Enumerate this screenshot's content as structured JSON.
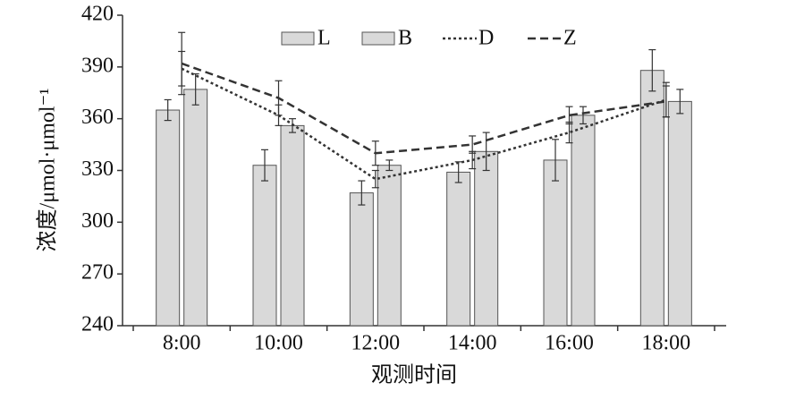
{
  "chart_data": {
    "type": "bar",
    "x_label": "观测时间",
    "y_label": "浓度/μmol·μmol⁻¹",
    "categories": [
      "8:00",
      "10:00",
      "12:00",
      "14:00",
      "16:00",
      "18:00"
    ],
    "series": [
      {
        "name": "L",
        "type": "bar",
        "color": "#d9d9d9",
        "values": [
          365,
          333,
          317,
          329,
          336,
          388
        ],
        "errors": [
          6,
          9,
          7,
          6,
          12,
          12
        ]
      },
      {
        "name": "B",
        "type": "bar",
        "color": "#d9d9d9",
        "values": [
          377,
          356,
          333,
          341,
          362,
          370
        ],
        "errors": [
          9,
          4,
          3,
          11,
          5,
          7
        ]
      },
      {
        "name": "D",
        "type": "line",
        "dash": "dotted",
        "color": "#333333",
        "values": [
          389,
          362,
          325,
          336,
          352,
          371
        ],
        "errors": [
          10,
          6,
          5,
          5,
          6,
          10
        ]
      },
      {
        "name": "Z",
        "type": "line",
        "dash": "dashed",
        "color": "#333333",
        "values": [
          392,
          372,
          340,
          345,
          362,
          370
        ],
        "errors": [
          18,
          10,
          7,
          5,
          5,
          9
        ]
      }
    ],
    "ylim": [
      240,
      420
    ],
    "yticks": [
      240,
      270,
      300,
      330,
      360,
      390,
      420
    ]
  }
}
